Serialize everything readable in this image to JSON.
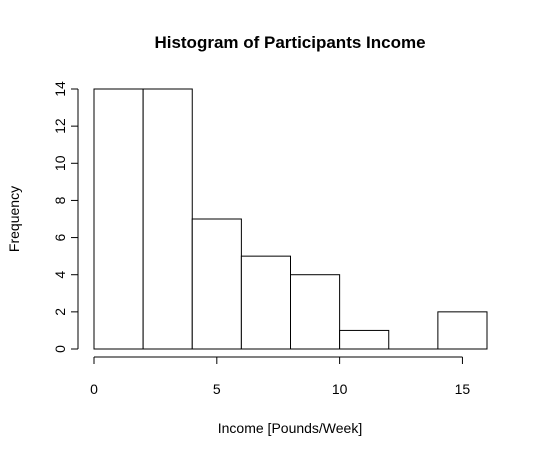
{
  "chart_data": {
    "type": "bar",
    "title": "Histogram of Participants Income",
    "xlabel": "Income [Pounds/Week]",
    "ylabel": "Frequency",
    "bins": [
      {
        "from": 0,
        "to": 2,
        "count": 14
      },
      {
        "from": 2,
        "to": 4,
        "count": 14
      },
      {
        "from": 4,
        "to": 6,
        "count": 7
      },
      {
        "from": 6,
        "to": 8,
        "count": 5
      },
      {
        "from": 8,
        "to": 10,
        "count": 4
      },
      {
        "from": 10,
        "to": 12,
        "count": 1
      },
      {
        "from": 12,
        "to": 14,
        "count": 0
      },
      {
        "from": 14,
        "to": 16,
        "count": 2
      }
    ],
    "xticks": [
      0,
      5,
      10,
      15
    ],
    "yticks": [
      0,
      2,
      4,
      6,
      8,
      10,
      12,
      14
    ],
    "xlim": [
      0,
      16
    ],
    "ylim": [
      0,
      14
    ],
    "grid": false,
    "bar_fill": "#ffffff",
    "bar_stroke": "#000000"
  }
}
